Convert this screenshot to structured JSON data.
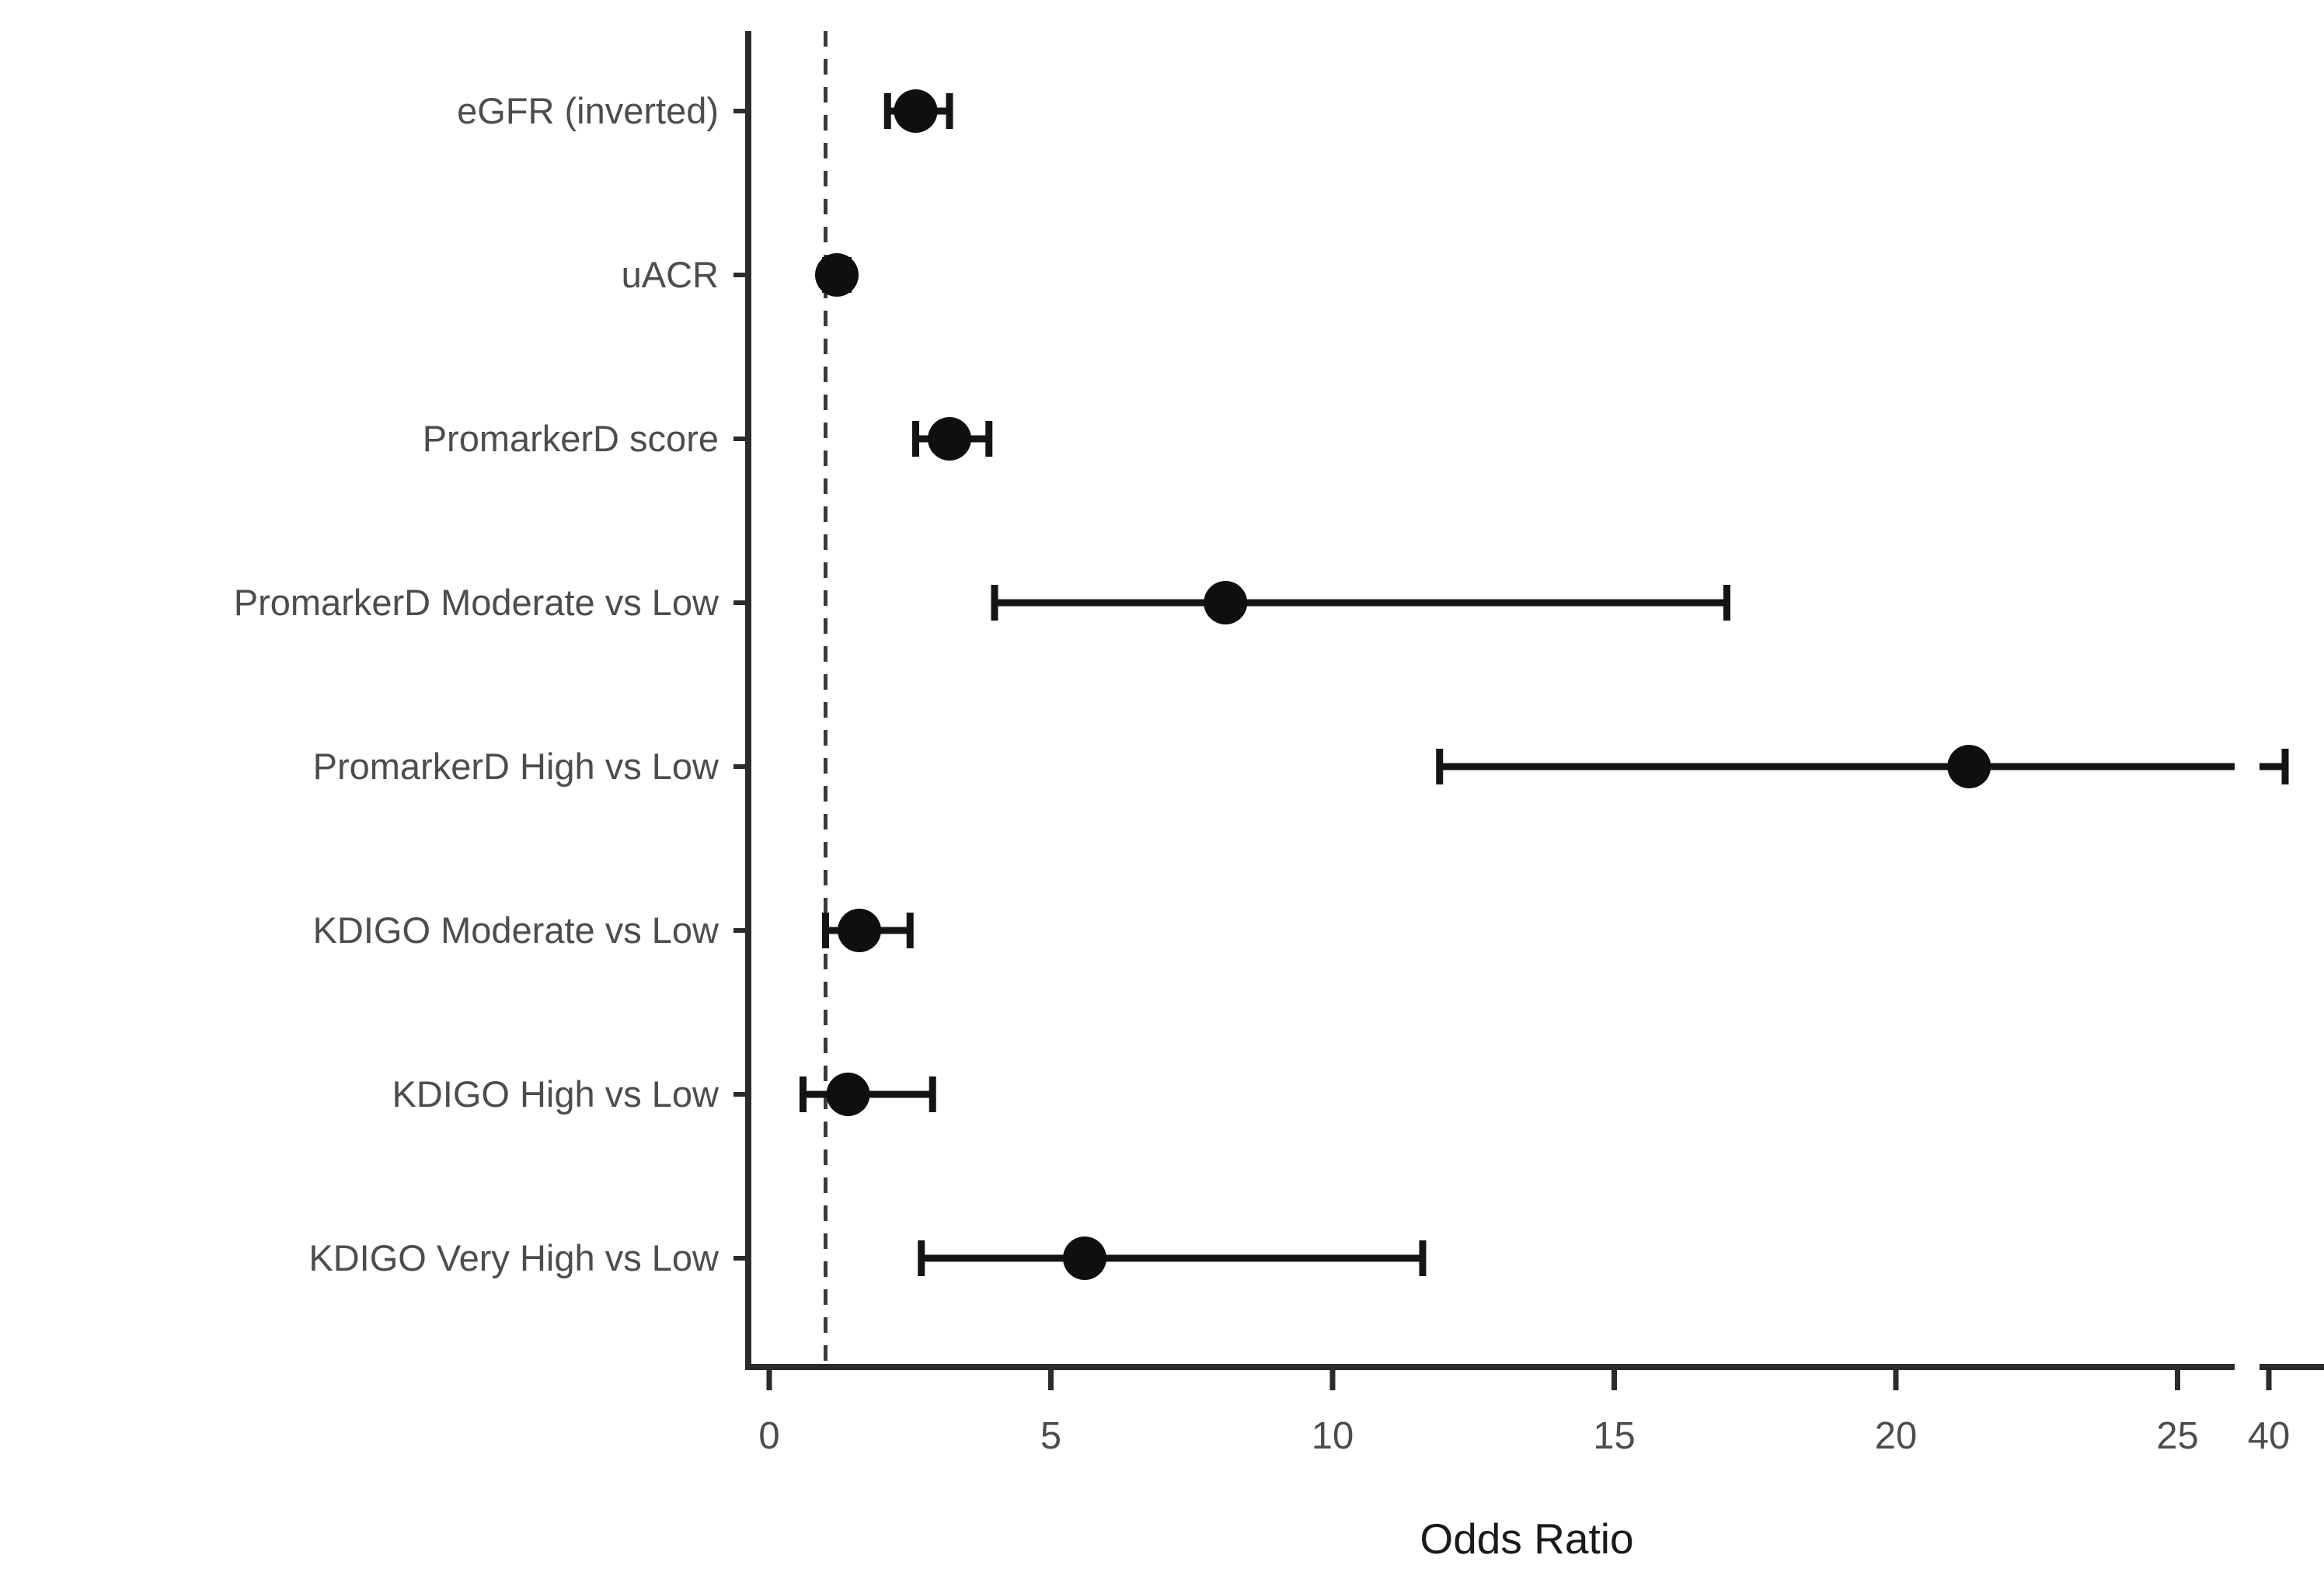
{
  "chart_data": {
    "type": "scatter",
    "subtype": "forest-plot",
    "title": "",
    "xlabel": "Odds Ratio",
    "ylabel": "",
    "x_axis": {
      "ticks": [
        {
          "label": "0",
          "value": 0
        },
        {
          "label": "5",
          "value": 5
        },
        {
          "label": "10",
          "value": 10
        },
        {
          "label": "15",
          "value": 15
        },
        {
          "label": "20",
          "value": 20
        },
        {
          "label": "25",
          "value": 25
        },
        {
          "label": "40",
          "value": 40,
          "beyond_break": true
        }
      ],
      "linear_range": [
        0,
        26
      ],
      "axis_break_between": [
        26,
        40
      ],
      "grid": false
    },
    "reference_line": {
      "value": 1,
      "style": "dashed"
    },
    "rows": [
      {
        "label": "eGFR (inverted)",
        "or": 2.6,
        "ci_low": 2.1,
        "ci_high": 3.2,
        "ci_high_beyond_break": false
      },
      {
        "label": "uACR",
        "or": 1.2,
        "ci_low": 1.0,
        "ci_high": 1.4,
        "ci_high_beyond_break": false
      },
      {
        "label": "PromarkerD score",
        "or": 3.2,
        "ci_low": 2.6,
        "ci_high": 3.9,
        "ci_high_beyond_break": false
      },
      {
        "label": "PromarkerD Moderate vs Low",
        "or": 8.1,
        "ci_low": 4.0,
        "ci_high": 17.0,
        "ci_high_beyond_break": false
      },
      {
        "label": "PromarkerD High vs Low",
        "or": 21.3,
        "ci_low": 11.9,
        "ci_high": 43.0,
        "ci_high_beyond_break": true
      },
      {
        "label": "KDIGO Moderate vs Low",
        "or": 1.6,
        "ci_low": 1.0,
        "ci_high": 2.5,
        "ci_high_beyond_break": false
      },
      {
        "label": "KDIGO High vs Low",
        "or": 1.4,
        "ci_low": 0.6,
        "ci_high": 2.9,
        "ci_high_beyond_break": false
      },
      {
        "label": "KDIGO Very High vs Low",
        "or": 5.6,
        "ci_low": 2.7,
        "ci_high": 11.6,
        "ci_high_beyond_break": false
      }
    ],
    "legend": null,
    "colors": {
      "point": "#0f0f0f",
      "ci": "#141414",
      "axis": "#2b2b2b",
      "tick_text": "#4d4d4d",
      "axis_title_text": "#1a1a1a",
      "reference_line": "#3a3a3a",
      "background": "#ffffff"
    }
  }
}
